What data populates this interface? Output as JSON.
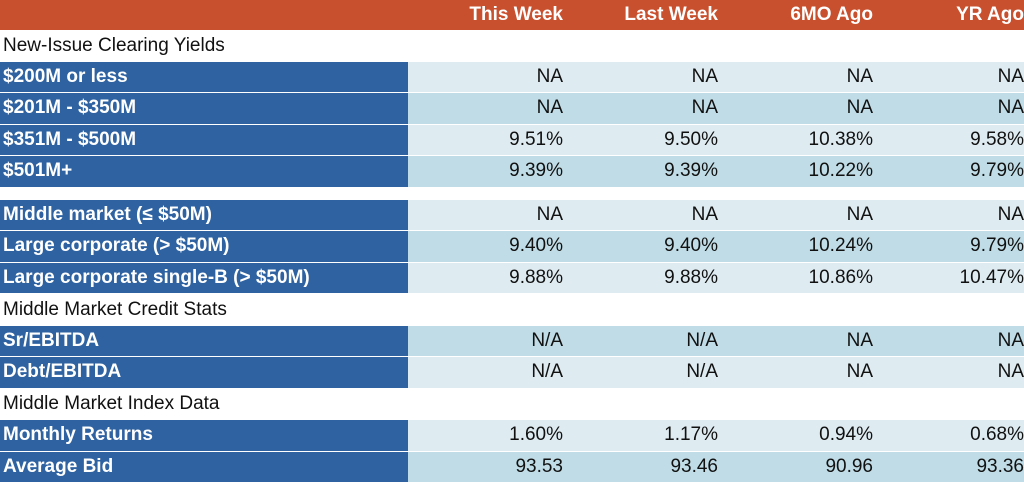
{
  "header": {
    "columns": [
      "This Week",
      "Last Week",
      "6MO Ago",
      "YR Ago"
    ]
  },
  "sections": [
    {
      "title": "New-Issue Clearing Yields",
      "rows": [
        {
          "label": "$200M or less",
          "values": [
            "NA",
            "NA",
            "NA",
            "NA"
          ]
        },
        {
          "label": "$201M - $350M",
          "values": [
            "NA",
            "NA",
            "NA",
            "NA"
          ]
        },
        {
          "label": "$351M - $500M",
          "values": [
            "9.51%",
            "9.50%",
            "10.38%",
            "9.58%"
          ]
        },
        {
          "label": "$501M+",
          "values": [
            "9.39%",
            "9.39%",
            "10.22%",
            "9.79%"
          ]
        }
      ]
    },
    {
      "title": "",
      "rows": [
        {
          "label": "Middle market (≤ $50M)",
          "values": [
            "NA",
            "NA",
            "NA",
            "NA"
          ]
        },
        {
          "label": "Large corporate (> $50M)",
          "values": [
            "9.40%",
            "9.40%",
            "10.24%",
            "9.79%"
          ]
        },
        {
          "label": "Large corporate single-B (> $50M)",
          "values": [
            "9.88%",
            "9.88%",
            "10.86%",
            "10.47%"
          ]
        }
      ]
    },
    {
      "title": "Middle Market Credit Stats",
      "rows": [
        {
          "label": "Sr/EBITDA",
          "values": [
            "N/A",
            "N/A",
            "NA",
            "NA"
          ]
        },
        {
          "label": "Debt/EBITDA",
          "values": [
            "N/A",
            "N/A",
            "NA",
            "NA"
          ]
        }
      ]
    },
    {
      "title": "Middle Market Index Data",
      "rows": [
        {
          "label": "Monthly Returns",
          "values": [
            "1.60%",
            "1.17%",
            "0.94%",
            "0.68%"
          ]
        },
        {
          "label": "Average Bid",
          "values": [
            "93.53",
            "93.46",
            "90.96",
            "93.36"
          ]
        }
      ]
    }
  ],
  "colors": {
    "header_bg": "#C8502E",
    "label_bg": "#2E62A1",
    "value_light": "#DEEBF1",
    "value_dark": "#C0DCE6"
  }
}
